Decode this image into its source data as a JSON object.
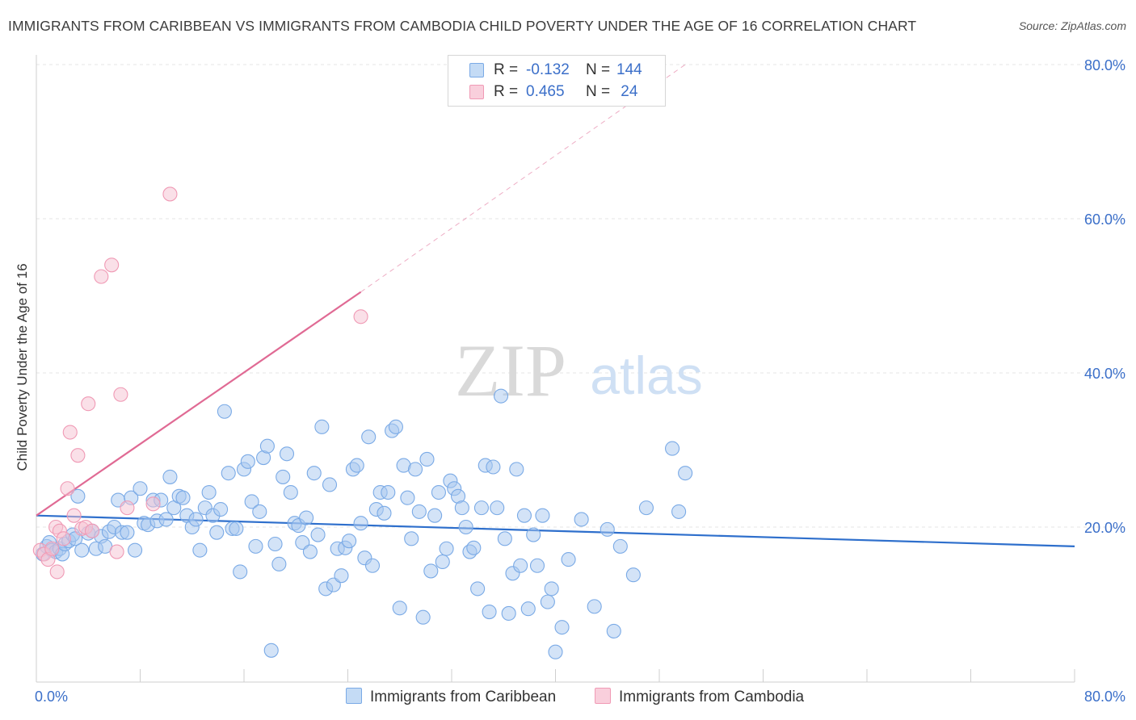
{
  "title": "IMMIGRANTS FROM CARIBBEAN VS IMMIGRANTS FROM CAMBODIA CHILD POVERTY UNDER THE AGE OF 16 CORRELATION CHART",
  "source": "Source: ZipAtlas.com",
  "watermark": {
    "zip": "ZIP",
    "atlas": "atlas"
  },
  "legend_top": [
    {
      "r_label": "R =",
      "r_value": "-0.132",
      "n_label": "N =",
      "n_value": "144",
      "color": "#a8c8f0"
    },
    {
      "r_label": "R =",
      "r_value": "0.465",
      "n_label": "N =",
      "n_value": " 24",
      "color": "#f5b8cc"
    }
  ],
  "legend_bottom": [
    {
      "label": "Immigrants from Caribbean",
      "color": "#a8c8f0"
    },
    {
      "label": "Immigrants from Cambodia",
      "color": "#f5b8cc"
    }
  ],
  "chart_data": {
    "type": "scatter",
    "title": "IMMIGRANTS FROM CARIBBEAN VS IMMIGRANTS FROM CAMBODIA CHILD POVERTY UNDER THE AGE OF 16 CORRELATION CHART",
    "xlabel": "",
    "ylabel": "Child Poverty Under the Age of 16",
    "xlim": [
      0,
      80
    ],
    "ylim": [
      0,
      80
    ],
    "x_tick_labels": [
      "0.0%",
      "80.0%"
    ],
    "y_tick_labels": [
      "20.0%",
      "40.0%",
      "60.0%",
      "80.0%"
    ],
    "y_ticks": [
      20,
      40,
      60,
      80
    ],
    "x_ticks": [
      0,
      8,
      16,
      24,
      32,
      40,
      48,
      56,
      64,
      72,
      80
    ],
    "grid": true,
    "series": [
      {
        "name": "Immigrants from Caribbean",
        "color": "#7aaae6",
        "fill": "#a8c8f0",
        "trend": {
          "x": [
            0,
            80
          ],
          "y": [
            21.5,
            17.5
          ],
          "color": "#2e6fcc"
        },
        "points": [
          [
            0.5,
            16.5
          ],
          [
            0.8,
            17.5
          ],
          [
            1,
            18
          ],
          [
            1.2,
            17
          ],
          [
            1.5,
            16.8
          ],
          [
            1.8,
            17.2
          ],
          [
            2,
            16.5
          ],
          [
            2.2,
            17.8
          ],
          [
            2.5,
            18.2
          ],
          [
            2.8,
            19
          ],
          [
            3,
            18.5
          ],
          [
            3.2,
            24
          ],
          [
            3.5,
            17
          ],
          [
            4,
            19.2
          ],
          [
            4.3,
            19.5
          ],
          [
            4.6,
            17.2
          ],
          [
            5,
            18.8
          ],
          [
            5.3,
            17.5
          ],
          [
            5.6,
            19.4
          ],
          [
            6,
            20
          ],
          [
            6.3,
            23.5
          ],
          [
            6.6,
            19.3
          ],
          [
            7,
            19.3
          ],
          [
            7.3,
            23.8
          ],
          [
            7.6,
            17
          ],
          [
            8,
            25
          ],
          [
            8.3,
            20.5
          ],
          [
            8.6,
            20.3
          ],
          [
            9,
            23.5
          ],
          [
            9.3,
            20.8
          ],
          [
            9.6,
            23.5
          ],
          [
            10,
            21
          ],
          [
            10.3,
            26.5
          ],
          [
            10.6,
            22.5
          ],
          [
            11,
            24
          ],
          [
            11.3,
            23.8
          ],
          [
            11.6,
            21.5
          ],
          [
            12,
            20
          ],
          [
            12.3,
            21
          ],
          [
            12.6,
            17
          ],
          [
            13,
            22.5
          ],
          [
            13.3,
            24.5
          ],
          [
            13.6,
            21.5
          ],
          [
            13.9,
            19.3
          ],
          [
            14.2,
            22.3
          ],
          [
            14.5,
            35
          ],
          [
            14.8,
            27
          ],
          [
            15.1,
            19.8
          ],
          [
            15.4,
            19.8
          ],
          [
            15.7,
            14.2
          ],
          [
            16,
            27.5
          ],
          [
            16.3,
            28.5
          ],
          [
            16.6,
            23.3
          ],
          [
            16.9,
            17.5
          ],
          [
            17.2,
            22
          ],
          [
            17.5,
            29
          ],
          [
            17.8,
            30.5
          ],
          [
            18.1,
            4
          ],
          [
            18.4,
            17.8
          ],
          [
            18.7,
            15.2
          ],
          [
            19,
            26.5
          ],
          [
            19.3,
            29.5
          ],
          [
            19.6,
            24.5
          ],
          [
            19.9,
            20.5
          ],
          [
            20.2,
            20.2
          ],
          [
            20.5,
            18
          ],
          [
            20.8,
            21.2
          ],
          [
            21.1,
            16.8
          ],
          [
            21.4,
            27
          ],
          [
            21.7,
            19
          ],
          [
            22,
            33
          ],
          [
            22.3,
            12
          ],
          [
            22.6,
            25.5
          ],
          [
            22.9,
            12.5
          ],
          [
            23.2,
            17.2
          ],
          [
            23.5,
            13.7
          ],
          [
            23.8,
            17.3
          ],
          [
            24.1,
            18.2
          ],
          [
            24.4,
            27.5
          ],
          [
            24.7,
            28
          ],
          [
            25,
            20.5
          ],
          [
            25.3,
            16
          ],
          [
            25.6,
            31.7
          ],
          [
            25.9,
            15
          ],
          [
            26.2,
            22.3
          ],
          [
            26.5,
            24.5
          ],
          [
            26.8,
            21.8
          ],
          [
            27.1,
            24.5
          ],
          [
            27.4,
            32.5
          ],
          [
            27.7,
            33
          ],
          [
            28,
            9.5
          ],
          [
            28.3,
            28
          ],
          [
            28.6,
            23.8
          ],
          [
            28.9,
            18.5
          ],
          [
            29.2,
            27.5
          ],
          [
            29.5,
            22
          ],
          [
            29.8,
            8.3
          ],
          [
            30.1,
            28.8
          ],
          [
            30.4,
            14.3
          ],
          [
            30.7,
            21.5
          ],
          [
            31,
            24.5
          ],
          [
            31.3,
            15.5
          ],
          [
            31.6,
            17.2
          ],
          [
            31.9,
            26
          ],
          [
            32.2,
            25
          ],
          [
            32.5,
            24
          ],
          [
            32.8,
            22.5
          ],
          [
            33.1,
            20
          ],
          [
            33.4,
            16.8
          ],
          [
            33.7,
            17.3
          ],
          [
            34,
            12
          ],
          [
            34.3,
            22.5
          ],
          [
            34.6,
            28
          ],
          [
            34.9,
            9
          ],
          [
            35.2,
            27.8
          ],
          [
            35.5,
            22.5
          ],
          [
            35.8,
            37
          ],
          [
            36.1,
            18.5
          ],
          [
            36.4,
            8.8
          ],
          [
            36.7,
            14
          ],
          [
            37,
            27.5
          ],
          [
            37.3,
            15
          ],
          [
            37.6,
            21.5
          ],
          [
            37.9,
            9.4
          ],
          [
            38.3,
            19
          ],
          [
            38.6,
            15
          ],
          [
            39,
            21.5
          ],
          [
            39.4,
            10.3
          ],
          [
            39.7,
            12
          ],
          [
            40,
            3.8
          ],
          [
            40.5,
            7
          ],
          [
            41,
            15.8
          ],
          [
            42,
            21
          ],
          [
            43,
            9.7
          ],
          [
            44,
            19.7
          ],
          [
            44.5,
            6.5
          ],
          [
            45,
            17.5
          ],
          [
            46,
            13.8
          ],
          [
            47,
            22.5
          ],
          [
            49,
            30.2
          ],
          [
            49.5,
            22
          ],
          [
            50,
            27
          ]
        ]
      },
      {
        "name": "Immigrants from Cambodia",
        "color": "#f09ab5",
        "fill": "#f5c2d2",
        "trend": {
          "x": [
            0,
            25
          ],
          "y": [
            21.5,
            50.5
          ],
          "color": "#e06a94",
          "extended_to": [
            50,
            80
          ]
        },
        "points": [
          [
            0.3,
            17
          ],
          [
            0.6,
            16.5
          ],
          [
            0.9,
            15.8
          ],
          [
            1.2,
            17.2
          ],
          [
            1.5,
            20
          ],
          [
            1.6,
            14.2
          ],
          [
            1.8,
            19.5
          ],
          [
            2.1,
            18.5
          ],
          [
            2.4,
            25
          ],
          [
            2.6,
            32.3
          ],
          [
            2.9,
            21.5
          ],
          [
            3.2,
            29.3
          ],
          [
            3.5,
            19.8
          ],
          [
            3.8,
            20
          ],
          [
            4,
            36
          ],
          [
            4.3,
            19.5
          ],
          [
            5,
            52.5
          ],
          [
            5.8,
            54
          ],
          [
            6.2,
            16.8
          ],
          [
            6.5,
            37.2
          ],
          [
            7,
            22.5
          ],
          [
            9,
            23
          ],
          [
            10.3,
            63.2
          ],
          [
            25,
            47.3
          ]
        ]
      }
    ]
  }
}
